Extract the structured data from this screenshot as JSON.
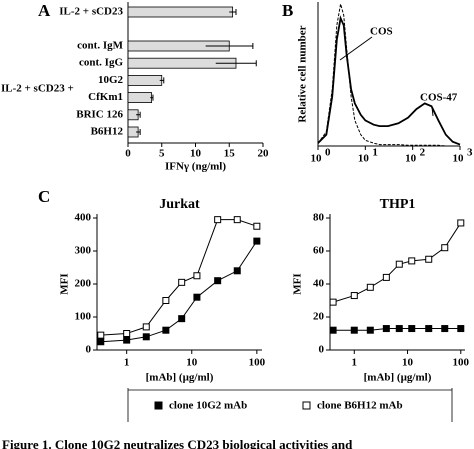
{
  "chart_data": [
    {
      "type": "hbar",
      "panel_label": "A",
      "group_label": "IL-2 + sCD23 +",
      "categories": [
        "IL-2 + sCD23",
        "cont. IgM",
        "cont. IgG",
        "10G2",
        "CfKm1",
        "BRIC 126",
        "B6H12"
      ],
      "values": [
        15.5,
        15,
        16,
        5,
        3.5,
        1.5,
        1.5
      ],
      "errors": [
        0.5,
        3.5,
        3,
        0.3,
        0.2,
        0.3,
        0.3
      ],
      "color": "#dcdcdc",
      "xlim": [
        0,
        20
      ],
      "xticks": [
        0,
        5,
        10,
        15,
        20
      ],
      "xlabel": "IFNγ (ng/ml)"
    },
    {
      "type": "histogram-curve",
      "panel_label": "B",
      "ylabel": "Relative cell number",
      "xscale": "log",
      "xlim": [
        1,
        1000
      ],
      "ylim": [
        0,
        100
      ],
      "xticks": [
        {
          "value": 1,
          "label": "10",
          "exponent": "0"
        },
        {
          "value": 10,
          "label": "10",
          "exponent": "1"
        },
        {
          "value": 100,
          "label": "10",
          "exponent": "2"
        },
        {
          "value": 1000,
          "label": "10",
          "exponent": "3"
        }
      ],
      "x": [
        1,
        1.5,
        2,
        2.5,
        3,
        3.5,
        4,
        5,
        6,
        8,
        10,
        15,
        20,
        30,
        50,
        80,
        120,
        180,
        250,
        350,
        500,
        700,
        1000
      ],
      "series": [
        {
          "name": "COS",
          "color": "#000000",
          "style": "dashed",
          "values": [
            2,
            10,
            40,
            85,
            100,
            92,
            70,
            35,
            18,
            8,
            4,
            2,
            1,
            1,
            1,
            0.5,
            0.5,
            0.5,
            0.5,
            0.5,
            0,
            0,
            0
          ]
        },
        {
          "name": "COS-47",
          "color": "#000000",
          "style": "solid",
          "values": [
            2,
            8,
            35,
            75,
            90,
            85,
            65,
            40,
            30,
            22,
            18,
            15,
            14,
            14,
            16,
            20,
            26,
            30,
            28,
            18,
            8,
            3,
            1
          ]
        }
      ]
    },
    {
      "type": "line",
      "panel_label": "C",
      "title": "Jurkat",
      "ylabel": "MFI",
      "xlabel": "[mAb] (µg/ml)",
      "xscale": "log",
      "xlim": [
        0.35,
        120
      ],
      "xticks": [
        1,
        10,
        100
      ],
      "ylim": [
        0,
        400
      ],
      "yticks": [
        0,
        100,
        200,
        300,
        400
      ],
      "x": [
        0.4,
        1,
        2,
        4,
        7,
        12,
        25,
        50,
        100
      ],
      "series": [
        {
          "name": "clone 10G2 mAb",
          "color": "#000000",
          "marker": "filled",
          "values": [
            25,
            30,
            40,
            60,
            95,
            160,
            210,
            240,
            330
          ]
        },
        {
          "name": "clone B6H12 mAb",
          "color": "#000000",
          "marker": "open",
          "values": [
            45,
            50,
            70,
            150,
            205,
            225,
            395,
            395,
            375
          ]
        }
      ]
    },
    {
      "type": "line",
      "title": "THP1",
      "ylabel": "MFI",
      "xlabel": "[mAb] (µg/ml)",
      "xscale": "log",
      "xlim": [
        0.35,
        120
      ],
      "xticks": [
        1,
        10,
        100
      ],
      "ylim": [
        0,
        80
      ],
      "yticks": [
        0,
        20,
        40,
        60,
        80
      ],
      "x": [
        0.4,
        1,
        2,
        4,
        7,
        12,
        25,
        50,
        100
      ],
      "series": [
        {
          "color": "#000000",
          "marker": "filled",
          "values": [
            12,
            12,
            12,
            13,
            13,
            13,
            13,
            13,
            13
          ]
        },
        {
          "color": "#000000",
          "marker": "open",
          "values": [
            29,
            33,
            38,
            44,
            52,
            54,
            55,
            62,
            77
          ]
        }
      ]
    }
  ],
  "caption": "Figure 1.  Clone 10G2 neutralizes CD23 biological activities and"
}
